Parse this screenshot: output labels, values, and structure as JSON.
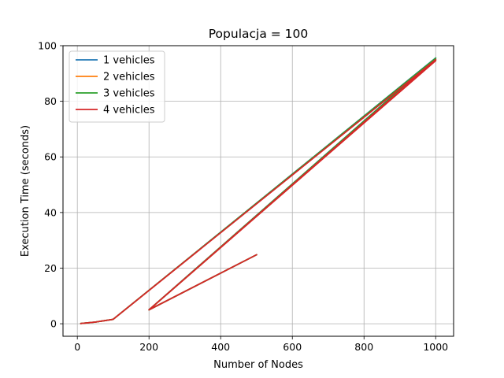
{
  "chart_data": {
    "type": "line",
    "title": "Populacja = 100",
    "xlabel": "Number of Nodes",
    "ylabel": "Execution Time (seconds)",
    "xlim": [
      -40,
      1050
    ],
    "ylim": [
      -4.5,
      100
    ],
    "xticks": [
      0,
      200,
      400,
      600,
      800,
      1000
    ],
    "yticks": [
      0,
      20,
      40,
      60,
      80,
      100
    ],
    "grid": true,
    "legend_position": "upper-left",
    "x": [
      10,
      50,
      100,
      1000,
      200,
      1000,
      200,
      500
    ],
    "series": [
      {
        "name": "1 vehicles",
        "color": "#1f77b4",
        "values": [
          0.1,
          0.6,
          1.6,
          95.6,
          5.0,
          94.9,
          5.0,
          24.8
        ]
      },
      {
        "name": "2 vehicles",
        "color": "#ff7f0e",
        "values": [
          0.1,
          0.6,
          1.6,
          95.4,
          5.0,
          94.8,
          5.0,
          24.8
        ]
      },
      {
        "name": "3 vehicles",
        "color": "#2ca02c",
        "values": [
          0.1,
          0.6,
          1.6,
          95.5,
          5.0,
          94.9,
          5.0,
          24.8
        ]
      },
      {
        "name": "4 vehicles",
        "color": "#d62728",
        "values": [
          0.1,
          0.6,
          1.6,
          95.0,
          5.0,
          94.6,
          5.0,
          24.8
        ]
      }
    ]
  }
}
